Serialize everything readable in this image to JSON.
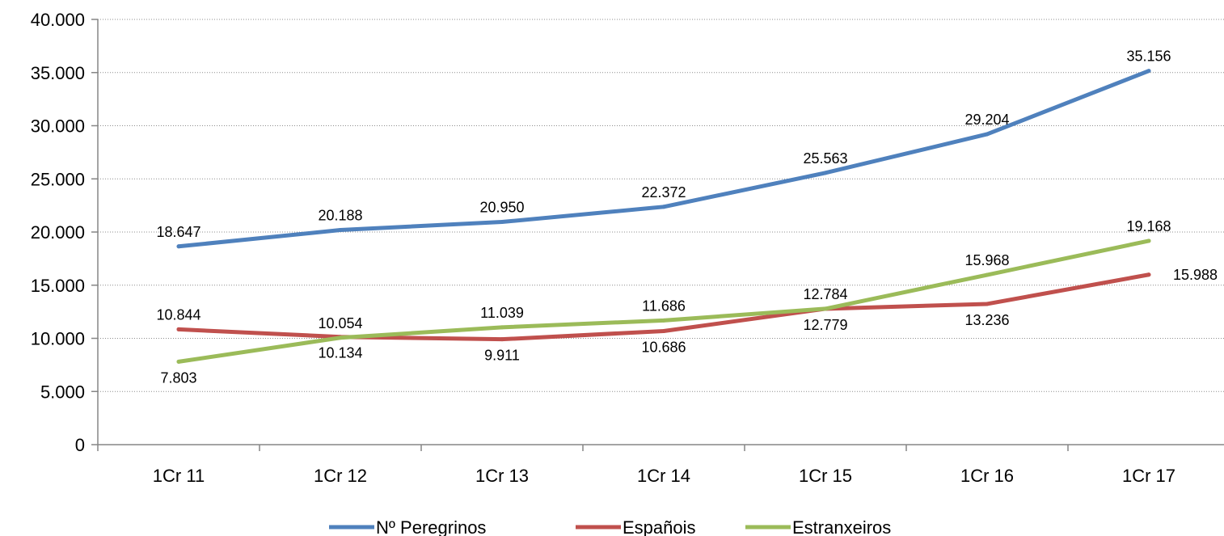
{
  "chart_data": {
    "type": "line",
    "categories": [
      "1Cr 11",
      "1Cr 12",
      "1Cr 13",
      "1Cr 14",
      "1Cr 15",
      "1Cr 16",
      "1Cr 17"
    ],
    "ylim": [
      0,
      40000
    ],
    "ytick_values": [
      0,
      5000,
      10000,
      15000,
      20000,
      25000,
      30000,
      35000,
      40000
    ],
    "ytick_labels": [
      "0",
      "5.000",
      "10.000",
      "15.000",
      "20.000",
      "25.000",
      "30.000",
      "35.000",
      "40.000"
    ],
    "grid": true,
    "legend_position": "bottom",
    "series": [
      {
        "name": "Nº Peregrinos",
        "color": "#4f81bd",
        "values": [
          18647,
          20188,
          20950,
          22372,
          25563,
          29204,
          35156
        ],
        "labels": [
          "18.647",
          "20.188",
          "20.950",
          "22.372",
          "25.563",
          "29.204",
          "35.156"
        ],
        "label_placement": [
          "above",
          "above",
          "above",
          "above",
          "above",
          "above",
          "above"
        ]
      },
      {
        "name": "Españois",
        "color": "#c0504d",
        "values": [
          10844,
          10134,
          9911,
          10686,
          12779,
          13236,
          15988
        ],
        "labels": [
          "10.844",
          "10.134",
          "9.911",
          "10.686",
          "12.779",
          "13.236",
          "15.988"
        ],
        "label_placement": [
          "above",
          "below",
          "below",
          "below",
          "below",
          "below",
          "right"
        ]
      },
      {
        "name": "Estranxeiros",
        "color": "#9bbb59",
        "values": [
          7803,
          10054,
          11039,
          11686,
          12784,
          15968,
          19168
        ],
        "labels": [
          "7.803",
          "10.054",
          "11.039",
          "11.686",
          "12.784",
          "15.968",
          "19.168"
        ],
        "label_placement": [
          "below",
          "above",
          "above",
          "above",
          "above",
          "above",
          "above"
        ]
      }
    ]
  }
}
